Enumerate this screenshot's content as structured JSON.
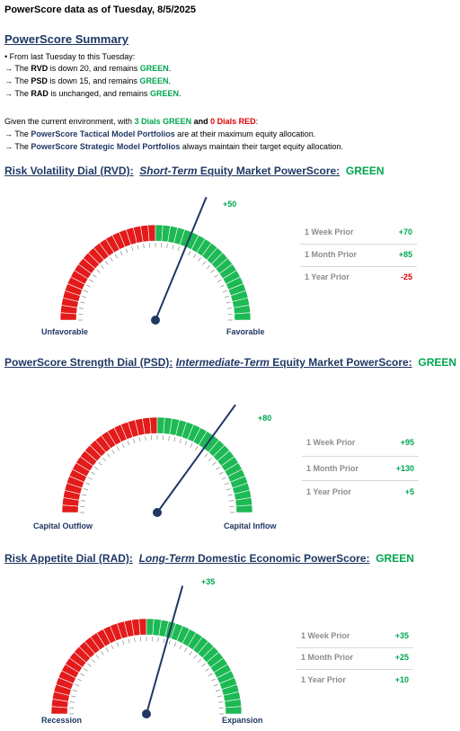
{
  "header": "PowerScore data as of Tuesday, 8/5/2025",
  "summary": {
    "title": "PowerScore Summary",
    "intro": "• From last Tuesday to this Tuesday:",
    "rvd": {
      "pre": "→ The ",
      "name": "RVD",
      "mid": " is down 20, and remains ",
      "status": "GREEN",
      "end": "."
    },
    "psd": {
      "pre": "→ The ",
      "name": "PSD",
      "mid": " is down 15, and remains ",
      "status": "GREEN",
      "end": "."
    },
    "rad": {
      "pre": "→ The ",
      "name": "RAD",
      "mid": " is unchanged, and remains ",
      "status": "GREEN",
      "end": "."
    },
    "env": {
      "pre": "Given the current environment, with ",
      "green_dials": "3 Dials GREEN",
      "and": " and ",
      "red_dials": "0 Dials RED",
      "end": ":"
    },
    "tactical": {
      "pre": "→ The ",
      "name": "PowerScore Tactical Model Portfolios",
      "end": " are at their maximum equity allocation."
    },
    "strategic": {
      "pre": "→ The ",
      "name": "PowerScore Strategic Model Portfolios",
      "end": " always maintain their target equity allocation."
    }
  },
  "dials": [
    {
      "title_a": "Risk Volatility Dial (RVD):",
      "title_b": "Short-Term",
      "title_c": " Equity Market PowerScore:",
      "status": "GREEN",
      "score": "+50",
      "score_value": 50,
      "left_label": "Unfavorable",
      "right_label": "Favorable",
      "priors": [
        {
          "label": "1 Week Prior",
          "value": "+70",
          "color": "#00a650"
        },
        {
          "label": "1 Month Prior",
          "value": "+85",
          "color": "#00a650"
        },
        {
          "label": "1 Year Prior",
          "value": "-25",
          "color": "#e00000"
        }
      ]
    },
    {
      "title_a": "PowerScore Strength Dial (PSD):",
      "title_b": "Intermediate-Term",
      "title_c": " Equity Market PowerScore:",
      "status": "GREEN",
      "score": "+80",
      "score_value": 80,
      "left_label": "Capital Outflow",
      "right_label": "Capital Inflow",
      "priors": [
        {
          "label": "1 Week Prior",
          "value": "+95",
          "color": "#00a650"
        },
        {
          "label": "1 Month Prior",
          "value": "+130",
          "color": "#00a650"
        },
        {
          "label": "1 Year Prior",
          "value": "+5",
          "color": "#00a650"
        }
      ]
    },
    {
      "title_a": "Risk Appetite Dial (RAD):",
      "title_b": "Long-Term",
      "title_c": " Domestic Economic PowerScore:",
      "status": "GREEN",
      "score": "+35",
      "score_value": 35,
      "left_label": "Recession",
      "right_label": "Expansion",
      "priors": [
        {
          "label": "1 Week Prior",
          "value": "+35",
          "color": "#00a650"
        },
        {
          "label": "1 Month Prior",
          "value": "+25",
          "color": "#00a650"
        },
        {
          "label": "1 Year Prior",
          "value": "+10",
          "color": "#00a650"
        }
      ]
    }
  ],
  "colors": {
    "green": "#00a650",
    "red": "#e00000",
    "navy": "#1f3864"
  }
}
